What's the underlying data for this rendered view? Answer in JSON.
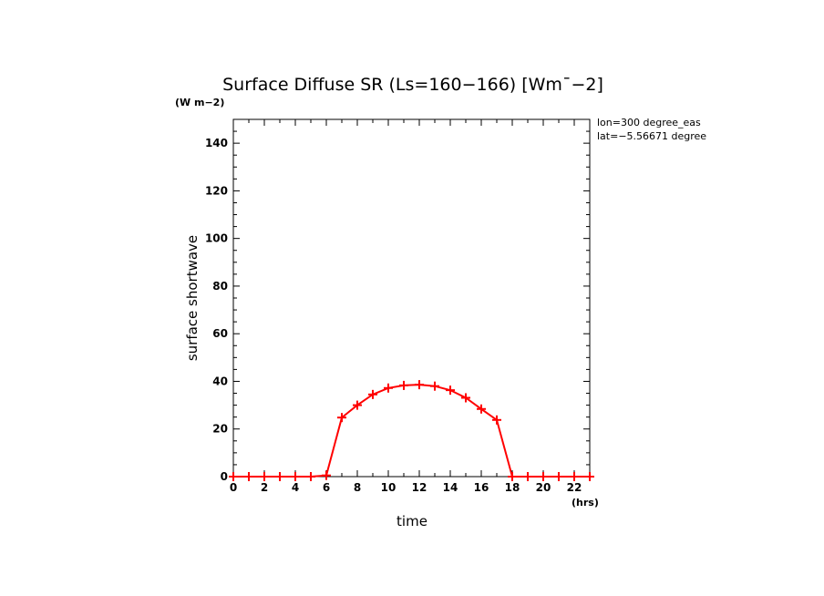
{
  "chart_data": {
    "type": "line",
    "title": "Surface Diffuse SR (Ls=160−166) [Wm¯−2]",
    "ylabel": "surface shortwave",
    "yunits": "(W m−2)",
    "xlabel": "time",
    "xunits": "(hrs)",
    "xlim": [
      0,
      23
    ],
    "ylim": [
      0,
      150
    ],
    "xticks": [
      0,
      2,
      4,
      6,
      8,
      10,
      12,
      14,
      16,
      18,
      20,
      22
    ],
    "yticks": [
      0,
      20,
      40,
      60,
      80,
      100,
      120,
      140
    ],
    "annotations": [
      "lon=300 degree_eas",
      "lat=−5.56671 degree"
    ],
    "grid": false,
    "series": [
      {
        "color": "#ff0000",
        "marker": "plus",
        "x": [
          0,
          1,
          2,
          3,
          4,
          5,
          6,
          7,
          8,
          9,
          10,
          11,
          12,
          13,
          14,
          15,
          16,
          17,
          18,
          19,
          20,
          21,
          22,
          23
        ],
        "y": [
          0,
          0,
          0,
          0,
          0,
          0,
          0.5,
          24.8,
          30.0,
          34.5,
          37.2,
          38.3,
          38.6,
          38.0,
          36.3,
          33.1,
          28.4,
          23.8,
          0,
          0,
          0,
          0,
          0,
          0
        ]
      }
    ]
  }
}
